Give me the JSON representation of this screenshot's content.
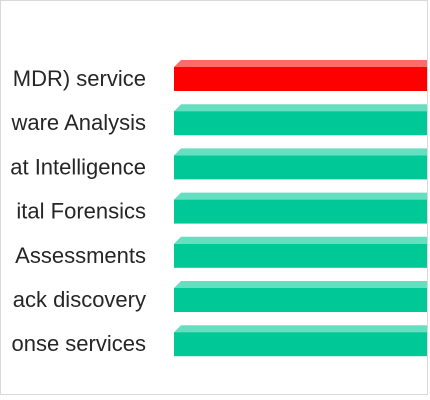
{
  "chart_data": {
    "type": "bar",
    "orientation": "horizontal",
    "categories": [
      "Managed Detection and Response (MDR) service",
      "Malware Analysis",
      "Threat Intelligence",
      "Digital Forensics",
      "Compromise Assessments",
      "Attack discovery",
      "Incident response services"
    ],
    "visible_labels": [
      "MDR) service",
      "ware Analysis",
      "at Intelligence",
      "ital Forensics",
      "Assessments",
      "ack discovery",
      "onse services"
    ],
    "colors": [
      "#ff0000",
      "#00c896",
      "#00c896",
      "#00c896",
      "#00c896",
      "#00c896",
      "#00c896"
    ],
    "top_colors": [
      "#ff6b6b",
      "#66dfc0",
      "#66dfc0",
      "#66dfc0",
      "#66dfc0",
      "#66dfc0",
      "#66dfc0"
    ],
    "title": "",
    "xlabel": "",
    "ylabel": "",
    "grid": false,
    "legend": "none"
  }
}
